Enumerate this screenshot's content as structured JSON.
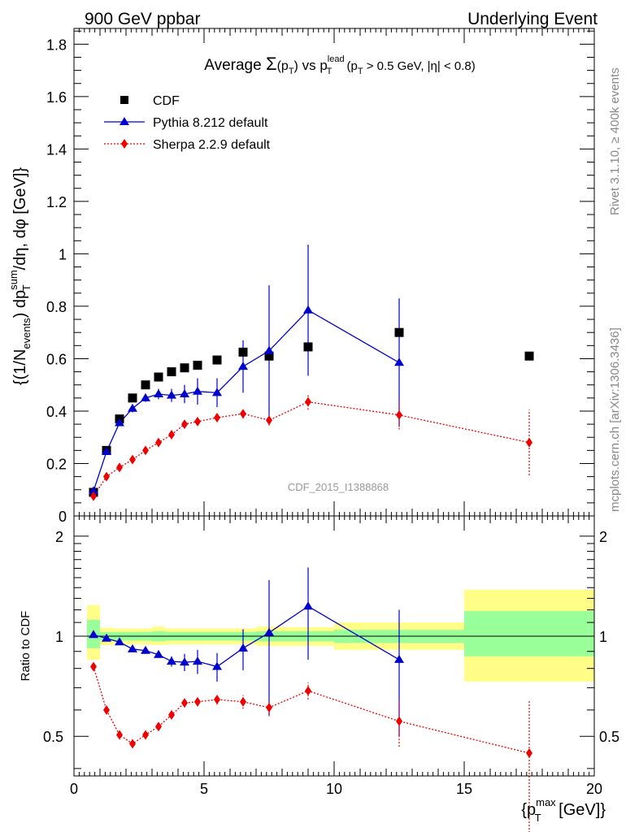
{
  "header": {
    "left": "900 GeV ppbar",
    "right": "Underlying Event"
  },
  "title": {
    "pre": "Average ",
    "sigma": "Σ",
    "pt_open": "(p",
    "pt_sub": "T",
    "pt_close": ")",
    "vs": " vs p",
    "lead_sup": "lead",
    "lead_sub": "T",
    "cut_open": " (p",
    "cut_sub": "T",
    "cut_rest": " > 0.5 GeV, |η| < 0.8)"
  },
  "side_labels": {
    "rivet": "Rivet 3.1.10, ≥ 400k events",
    "mcplots": "mcplots.cern.ch [arXiv:1306.3436]"
  },
  "watermark": "CDF_2015_I1388868",
  "yaxis_main": {
    "p1": "{(1/N",
    "p1_sub": "events",
    "p2": ") dp",
    "p2_sup": "sum",
    "p2_sub": "T",
    "p3": "/dη, dφ [GeV]}"
  },
  "yaxis_ratio": "Ratio to CDF",
  "xaxis": {
    "open": "{p",
    "sup": "max",
    "sub": "T",
    "rest": " [GeV]}"
  },
  "legend": {
    "cdf": "CDF",
    "pythia": "Pythia 8.212 default",
    "sherpa": "Sherpa 2.2.9 default"
  },
  "colors": {
    "cdf": "#000000",
    "pythia": "#0000cc",
    "sherpa": "#ee0000",
    "band_outer": "#ffff88",
    "band_inner": "#99ff99"
  },
  "chart_data": [
    {
      "type": "scatter",
      "panel": "main",
      "x_label": "{p_T^max [GeV]}",
      "y_label": "{(1/N_events) dp_T^sum/dη, dφ [GeV]}",
      "xlim": [
        0,
        20
      ],
      "ylim": [
        0,
        1.86
      ],
      "yticks": [
        0,
        0.2,
        0.4,
        0.6,
        0.8,
        1,
        1.2,
        1.4,
        1.6,
        1.8
      ],
      "ytick_labels": [
        "0",
        "0.2",
        "0.4",
        "0.6",
        "0.8",
        "1",
        "1.2",
        "1.4",
        "1.6",
        "1.8"
      ],
      "series": [
        {
          "name": "CDF",
          "style": "square",
          "x": [
            0.75,
            1.25,
            1.75,
            2.25,
            2.75,
            3.25,
            3.75,
            4.25,
            4.75,
            5.5,
            6.5,
            7.5,
            9,
            12.5,
            17.5
          ],
          "y": [
            0.09,
            0.25,
            0.37,
            0.45,
            0.5,
            0.53,
            0.55,
            0.565,
            0.575,
            0.595,
            0.625,
            0.61,
            0.645,
            0.7,
            0.61
          ]
        },
        {
          "name": "Pythia 8.212 default",
          "style": "triangle-line",
          "x": [
            0.75,
            1.25,
            1.75,
            2.25,
            2.75,
            3.25,
            3.75,
            4.25,
            4.75,
            5.5,
            6.5,
            7.5,
            9,
            12.5
          ],
          "y": [
            0.095,
            0.245,
            0.355,
            0.41,
            0.45,
            0.465,
            0.46,
            0.465,
            0.475,
            0.47,
            0.57,
            0.63,
            0.785,
            0.585
          ],
          "err": [
            0.008,
            0.01,
            0.012,
            0.015,
            0.015,
            0.02,
            0.025,
            0.035,
            0.05,
            0.055,
            0.1,
            0.25,
            0.25,
            0.245
          ]
        },
        {
          "name": "Sherpa 2.2.9 default",
          "style": "diamond-dotted",
          "x": [
            0.75,
            1.25,
            1.75,
            2.25,
            2.75,
            3.25,
            3.75,
            4.25,
            4.75,
            5.5,
            6.5,
            7.5,
            9,
            12.5,
            17.5
          ],
          "y": [
            0.075,
            0.15,
            0.185,
            0.215,
            0.25,
            0.28,
            0.31,
            0.35,
            0.36,
            0.375,
            0.39,
            0.365,
            0.435,
            0.385,
            0.28
          ],
          "err": [
            0.005,
            0.006,
            0.007,
            0.008,
            0.009,
            0.01,
            0.012,
            0.012,
            0.014,
            0.015,
            0.018,
            0.02,
            0.03,
            0.055,
            0.125
          ]
        }
      ]
    },
    {
      "type": "scatter",
      "panel": "ratio",
      "y_label": "Ratio to CDF",
      "xlim": [
        0,
        20
      ],
      "ylim": [
        0.38,
        2.3
      ],
      "log_y": true,
      "yticks": [
        0.5,
        1,
        2
      ],
      "ytick_labels": [
        "0.5",
        "1",
        "2"
      ],
      "xticks": [
        0,
        5,
        10,
        15,
        20
      ],
      "xtick_labels": [
        "0",
        "5",
        "10",
        "15",
        "20"
      ],
      "bands": [
        {
          "x": [
            0.5,
            1.0
          ],
          "outer": [
            0.85,
            1.24
          ],
          "inner": [
            0.92,
            1.12
          ]
        },
        {
          "x": [
            1.0,
            1.5
          ],
          "outer": [
            0.94,
            1.06
          ],
          "inner": [
            0.97,
            1.03
          ]
        },
        {
          "x": [
            1.5,
            3.0
          ],
          "outer": [
            0.945,
            1.055
          ],
          "inner": [
            0.97,
            1.03
          ]
        },
        {
          "x": [
            3.0,
            3.5
          ],
          "outer": [
            0.94,
            1.07
          ],
          "inner": [
            0.965,
            1.035
          ]
        },
        {
          "x": [
            3.5,
            7.0
          ],
          "outer": [
            0.945,
            1.055
          ],
          "inner": [
            0.97,
            1.03
          ]
        },
        {
          "x": [
            7.0,
            8.0
          ],
          "outer": [
            0.935,
            1.07
          ],
          "inner": [
            0.965,
            1.035
          ]
        },
        {
          "x": [
            8.0,
            10.0
          ],
          "outer": [
            0.935,
            1.065
          ],
          "inner": [
            0.965,
            1.035
          ]
        },
        {
          "x": [
            10.0,
            15.0
          ],
          "outer": [
            0.91,
            1.1
          ],
          "inner": [
            0.955,
            1.045
          ]
        },
        {
          "x": [
            15.0,
            20.0
          ],
          "outer": [
            0.73,
            1.38
          ],
          "inner": [
            0.87,
            1.19
          ]
        }
      ],
      "series": [
        {
          "name": "Pythia 8.212 default",
          "x": [
            0.75,
            1.25,
            1.75,
            2.25,
            2.75,
            3.25,
            3.75,
            4.25,
            4.75,
            5.5,
            6.5,
            7.5,
            9,
            12.5
          ],
          "y": [
            1.01,
            0.985,
            0.96,
            0.915,
            0.905,
            0.88,
            0.84,
            0.835,
            0.84,
            0.81,
            0.92,
            1.025,
            1.23,
            0.85
          ],
          "err": [
            0.008,
            0.01,
            0.012,
            0.015,
            0.018,
            0.02,
            0.03,
            0.05,
            0.07,
            0.08,
            0.13,
            0.45,
            0.38,
            0.35
          ]
        },
        {
          "name": "Sherpa 2.2.9 default",
          "x": [
            0.75,
            1.25,
            1.75,
            2.25,
            2.75,
            3.25,
            3.75,
            4.25,
            4.75,
            5.5,
            6.5,
            7.5,
            9,
            12.5,
            17.5
          ],
          "y": [
            0.81,
            0.6,
            0.505,
            0.475,
            0.505,
            0.535,
            0.58,
            0.63,
            0.635,
            0.645,
            0.635,
            0.61,
            0.685,
            0.555,
            0.445
          ],
          "err": [
            0.01,
            0.01,
            0.01,
            0.01,
            0.01,
            0.012,
            0.015,
            0.018,
            0.02,
            0.022,
            0.03,
            0.035,
            0.04,
            0.09,
            0.2
          ]
        }
      ]
    }
  ]
}
